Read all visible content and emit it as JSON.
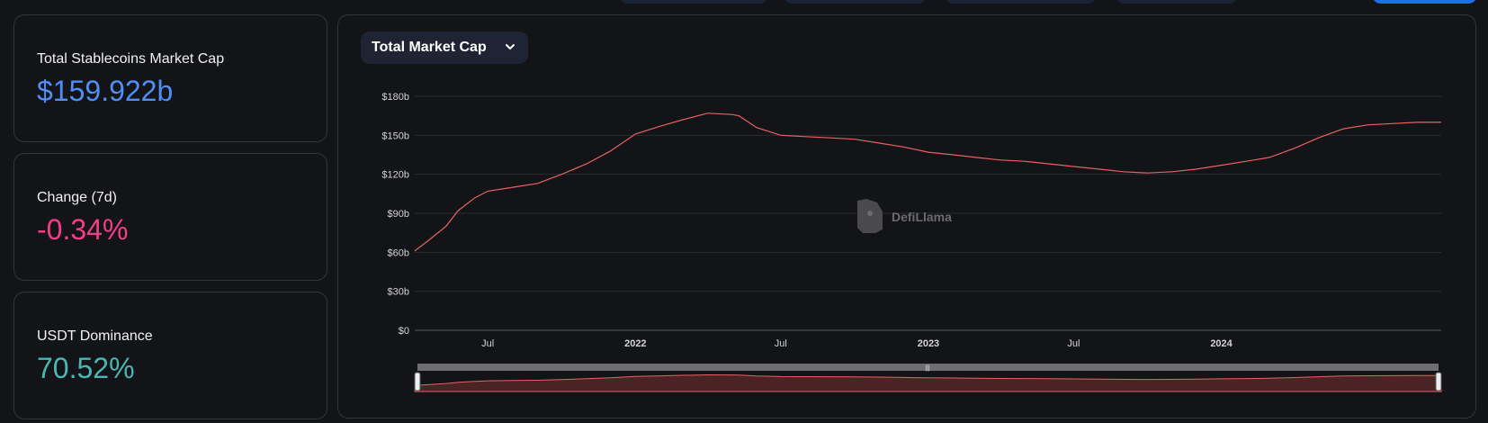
{
  "stats": {
    "market_cap": {
      "label": "Total Stablecoins Market Cap",
      "value": "$159.922b"
    },
    "change": {
      "label": "Change (7d)",
      "value": "-0.34%"
    },
    "dominance": {
      "label": "USDT Dominance",
      "value": "70.52%"
    }
  },
  "chart_panel": {
    "selector_label": "Total Market Cap",
    "watermark": "DefiLlama",
    "brush_handle_label": "|||"
  },
  "colors": {
    "line": "#e66262",
    "mcap_value": "#4f8ef7",
    "change_value": "#f53c8a",
    "dominance_value": "#49b7b3"
  },
  "chart_data": {
    "type": "line",
    "title": "",
    "xlabel": "",
    "ylabel": "",
    "ylim": [
      0,
      180
    ],
    "y_unit": "$ billions",
    "y_ticks": [
      "$0",
      "$30b",
      "$60b",
      "$90b",
      "$120b",
      "$150b",
      "$180b"
    ],
    "y_tick_values": [
      0,
      30,
      60,
      90,
      120,
      150,
      180
    ],
    "x_ticks": [
      {
        "label": "Jul",
        "date": "2021-07-01",
        "bold": false
      },
      {
        "label": "2022",
        "date": "2022-01-01",
        "bold": true
      },
      {
        "label": "Jul",
        "date": "2022-07-01",
        "bold": false
      },
      {
        "label": "2023",
        "date": "2023-01-01",
        "bold": true
      },
      {
        "label": "Jul",
        "date": "2023-07-01",
        "bold": false
      },
      {
        "label": "2024",
        "date": "2024-01-01",
        "bold": true
      }
    ],
    "x_range": [
      "2021-04-01",
      "2024-10-01"
    ],
    "grid": true,
    "series": [
      {
        "name": "",
        "x": [
          "2021-04-01",
          "2021-04-20",
          "2021-05-10",
          "2021-05-25",
          "2021-06-15",
          "2021-07-01",
          "2021-08-01",
          "2021-09-01",
          "2021-10-01",
          "2021-11-01",
          "2021-12-01",
          "2022-01-01",
          "2022-02-01",
          "2022-03-01",
          "2022-04-01",
          "2022-05-01",
          "2022-05-10",
          "2022-06-01",
          "2022-07-01",
          "2022-08-01",
          "2022-09-01",
          "2022-10-01",
          "2022-11-01",
          "2022-12-01",
          "2023-01-01",
          "2023-02-01",
          "2023-03-01",
          "2023-04-01",
          "2023-05-01",
          "2023-06-01",
          "2023-07-01",
          "2023-08-01",
          "2023-09-01",
          "2023-10-01",
          "2023-11-01",
          "2023-12-01",
          "2024-01-01",
          "2024-02-01",
          "2024-03-01",
          "2024-04-01",
          "2024-05-01",
          "2024-06-01",
          "2024-07-01",
          "2024-08-01",
          "2024-09-01",
          "2024-10-01"
        ],
        "values": [
          61,
          70,
          80,
          92,
          102,
          107,
          110,
          113,
          120,
          128,
          138,
          151,
          157,
          162,
          167,
          166,
          165,
          156,
          150,
          149,
          148,
          147,
          144,
          141,
          137,
          135,
          133,
          131,
          130,
          128,
          126,
          124,
          122,
          121,
          122,
          124,
          127,
          130,
          133,
          140,
          148,
          155,
          158,
          159,
          160,
          160
        ]
      }
    ]
  }
}
